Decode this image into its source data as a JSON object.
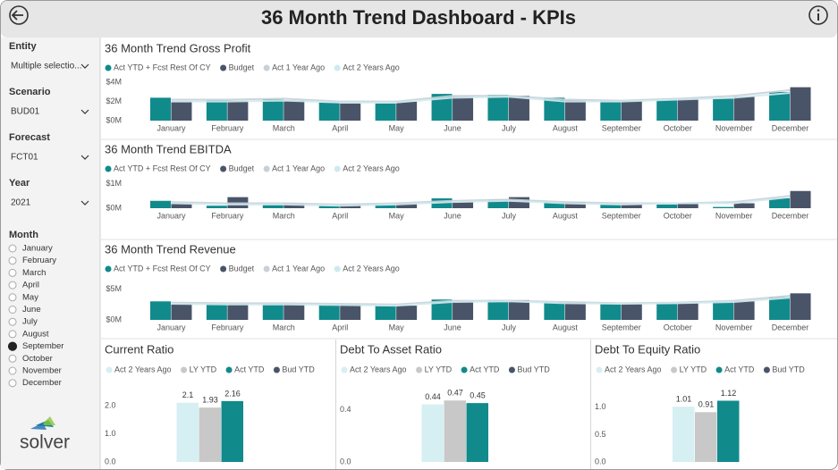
{
  "header": {
    "title": "36 Month Trend Dashboard - KPIs"
  },
  "filters": [
    {
      "label": "Entity",
      "value": "Multiple selectio..."
    },
    {
      "label": "Scenario",
      "value": "BUD01"
    },
    {
      "label": "Forecast",
      "value": "FCT01"
    },
    {
      "label": "Year",
      "value": "2021"
    }
  ],
  "month_filter": {
    "label": "Month",
    "options": [
      "January",
      "February",
      "March",
      "April",
      "May",
      "June",
      "July",
      "August",
      "September",
      "October",
      "November",
      "December"
    ],
    "selected": "September"
  },
  "logo": "solver",
  "trend_charts": [
    {
      "type": "bar",
      "title": "36 Month Trend Gross Profit",
      "categories": [
        "January",
        "February",
        "March",
        "April",
        "May",
        "June",
        "July",
        "August",
        "September",
        "October",
        "November",
        "December"
      ],
      "series": [
        {
          "name": "Act YTD + Fcst Rest Of CY",
          "color": "#118a8c",
          "mark": "bar",
          "values": [
            2.4,
            2.1,
            2.2,
            1.9,
            1.8,
            2.8,
            2.7,
            2.4,
            2.1,
            2.2,
            2.3,
            3.0
          ]
        },
        {
          "name": "Budget",
          "color": "#4a5468",
          "mark": "bar",
          "values": [
            2.0,
            2.1,
            2.1,
            1.8,
            2.0,
            2.5,
            2.6,
            2.1,
            2.1,
            2.3,
            2.5,
            3.5
          ]
        },
        {
          "name": "Act 1 Year Ago",
          "color": "#c8d0d8",
          "mark": "line",
          "values": [
            2.2,
            2.2,
            2.3,
            2.0,
            2.0,
            2.6,
            2.6,
            2.2,
            2.1,
            2.3,
            2.6,
            3.2
          ]
        },
        {
          "name": "Act 2 Years Ago",
          "color": "#cfeaee",
          "mark": "line",
          "values": [
            2.0,
            2.0,
            2.1,
            1.9,
            1.9,
            2.4,
            2.5,
            2.0,
            2.0,
            2.2,
            2.4,
            2.9
          ]
        }
      ],
      "ylim": [
        0,
        4.4
      ],
      "yticks": [
        {
          "value": 0,
          "label": "$0M"
        },
        {
          "value": 2,
          "label": "$2M"
        },
        {
          "value": 4,
          "label": "$4M"
        }
      ]
    },
    {
      "type": "bar",
      "title": "36 Month Trend EBITDA",
      "categories": [
        "January",
        "February",
        "March",
        "April",
        "May",
        "June",
        "July",
        "August",
        "September",
        "October",
        "November",
        "December"
      ],
      "series": [
        {
          "name": "Act YTD + Fcst Rest Of CY",
          "color": "#118a8c",
          "mark": "bar",
          "values": [
            0.3,
            0.1,
            0.15,
            0.1,
            0.15,
            0.4,
            0.35,
            0.25,
            0.15,
            0.15,
            0.05,
            0.4
          ]
        },
        {
          "name": "Budget",
          "color": "#4a5468",
          "mark": "bar",
          "values": [
            0.2,
            0.45,
            0.2,
            0.15,
            0.2,
            0.25,
            0.45,
            0.25,
            0.15,
            0.2,
            0.2,
            0.7
          ]
        },
        {
          "name": "Act 1 Year Ago",
          "color": "#c8d0d8",
          "mark": "line",
          "values": [
            0.25,
            0.2,
            0.2,
            0.15,
            0.2,
            0.3,
            0.35,
            0.25,
            0.2,
            0.2,
            0.25,
            0.5
          ]
        },
        {
          "name": "Act 2 Years Ago",
          "color": "#cfeaee",
          "mark": "line",
          "values": [
            0.2,
            0.15,
            0.15,
            0.1,
            0.15,
            0.25,
            0.3,
            0.2,
            0.15,
            0.2,
            0.2,
            0.45
          ]
        }
      ],
      "ylim": [
        0,
        1.2
      ],
      "yticks": [
        {
          "value": 0,
          "label": "$0M"
        },
        {
          "value": 1,
          "label": "$1M"
        }
      ]
    },
    {
      "type": "bar",
      "title": "36 Month Trend Revenue",
      "categories": [
        "January",
        "February",
        "March",
        "April",
        "May",
        "June",
        "July",
        "August",
        "September",
        "October",
        "November",
        "December"
      ],
      "series": [
        {
          "name": "Act YTD + Fcst Rest Of CY",
          "color": "#118a8c",
          "mark": "bar",
          "values": [
            3.0,
            2.6,
            2.6,
            2.5,
            2.3,
            3.3,
            3.2,
            2.9,
            2.6,
            2.7,
            2.9,
            3.7
          ]
        },
        {
          "name": "Budget",
          "color": "#4a5468",
          "mark": "bar",
          "values": [
            2.6,
            2.6,
            2.6,
            2.5,
            2.3,
            3.0,
            3.2,
            2.9,
            2.7,
            2.8,
            3.0,
            4.3
          ]
        },
        {
          "name": "Act 1 Year Ago",
          "color": "#c8d0d8",
          "mark": "line",
          "values": [
            2.8,
            2.7,
            2.7,
            2.6,
            2.5,
            3.1,
            3.1,
            2.9,
            2.7,
            2.8,
            3.1,
            3.9
          ]
        },
        {
          "name": "Act 2 Years Ago",
          "color": "#cfeaee",
          "mark": "line",
          "values": [
            2.6,
            2.5,
            2.5,
            2.4,
            2.3,
            2.9,
            3.0,
            2.7,
            2.6,
            2.7,
            2.9,
            3.6
          ]
        }
      ],
      "ylim": [
        0,
        5.5
      ],
      "yticks": [
        {
          "value": 0,
          "label": "$0M"
        },
        {
          "value": 5,
          "label": "$5M"
        }
      ]
    }
  ],
  "ratio_charts": [
    {
      "type": "bar",
      "title": "Current Ratio",
      "series": [
        {
          "name": "Act 2 Years Ago",
          "color": "#d6eff2",
          "value": 2.1
        },
        {
          "name": "LY YTD",
          "color": "#c8c8c8",
          "value": 1.93
        },
        {
          "name": "Act YTD",
          "color": "#118a8c",
          "value": 2.16
        },
        {
          "name": "Bud YTD",
          "color": "#4a5468",
          "value": null
        }
      ],
      "ylim": [
        0,
        2.6
      ],
      "yticks": [
        {
          "value": 0,
          "label": "0.0"
        },
        {
          "value": 1,
          "label": "1.0"
        },
        {
          "value": 2,
          "label": "2.0"
        }
      ]
    },
    {
      "type": "bar",
      "title": "Debt To Asset Ratio",
      "series": [
        {
          "name": "Act 2 Years Ago",
          "color": "#d6eff2",
          "value": 0.44
        },
        {
          "name": "LY YTD",
          "color": "#c8c8c8",
          "value": 0.47
        },
        {
          "name": "Act YTD",
          "color": "#118a8c",
          "value": 0.45
        },
        {
          "name": "Bud YTD",
          "color": "#4a5468",
          "value": null
        }
      ],
      "ylim": [
        0,
        0.56
      ],
      "yticks": [
        {
          "value": 0,
          "label": "0.0"
        },
        0.4
      ]
    },
    {
      "type": "bar",
      "title": "Debt To Equity Ratio",
      "series": [
        {
          "name": "Act 2 Years Ago",
          "color": "#d6eff2",
          "value": 1.01
        },
        {
          "name": "LY YTD",
          "color": "#c8c8c8",
          "value": 0.91
        },
        {
          "name": "Act YTD",
          "color": "#118a8c",
          "value": 1.12
        },
        {
          "name": "Bud YTD",
          "color": "#4a5468",
          "value": null
        }
      ],
      "ylim": [
        0,
        1.34
      ],
      "yticks": [
        {
          "value": 0,
          "label": "0.0"
        },
        0.5,
        {
          "value": 1,
          "label": "1.0"
        }
      ]
    }
  ]
}
